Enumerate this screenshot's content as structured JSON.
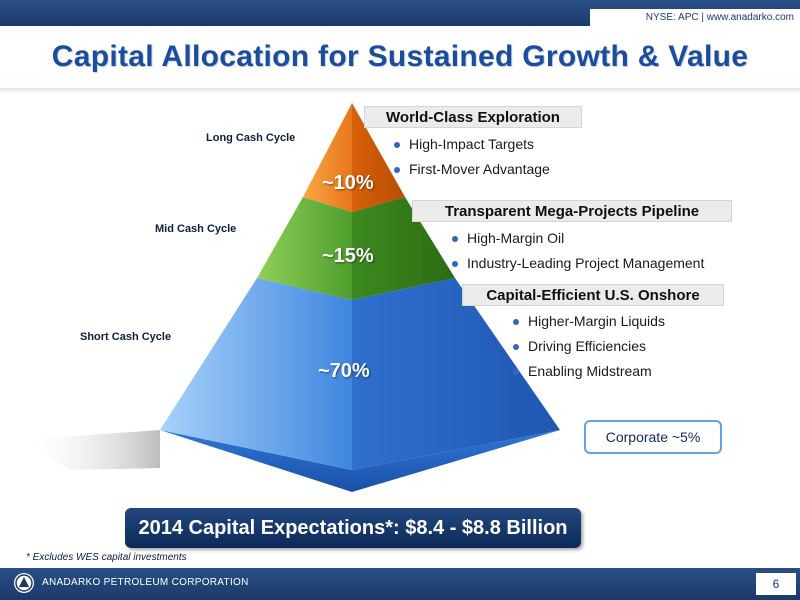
{
  "header": {
    "ticker": "NYSE: APC | www.anadarko.com"
  },
  "title": "Capital Allocation for Sustained Growth & Value",
  "cycles": [
    "Long Cash Cycle",
    "Mid Cash Cycle",
    "Short Cash Cycle"
  ],
  "tiers": [
    {
      "pct": "~10%",
      "heading": "World-Class Exploration",
      "bullets": [
        "High-Impact Targets",
        "First-Mover Advantage"
      ],
      "color": "#e8781e"
    },
    {
      "pct": "~15%",
      "heading": "Transparent Mega-Projects Pipeline",
      "bullets": [
        "High-Margin Oil",
        "Industry-Leading Project Management"
      ],
      "color": "#4e9a2a"
    },
    {
      "pct": "~70%",
      "heading": "Capital-Efficient U.S. Onshore",
      "bullets": [
        "Higher-Margin Liquids",
        "Driving Efficiencies",
        "Enabling Midstream"
      ],
      "color": "#3a7fd8"
    }
  ],
  "corporate": "Corporate ~5%",
  "expectations": "2014 Capital Expectations*: $8.4 - $8.8 Billion",
  "footnote": "* Excludes WES capital investments",
  "footer": {
    "company": "ANADARKO PETROLEUM CORPORATION",
    "page": "6"
  }
}
